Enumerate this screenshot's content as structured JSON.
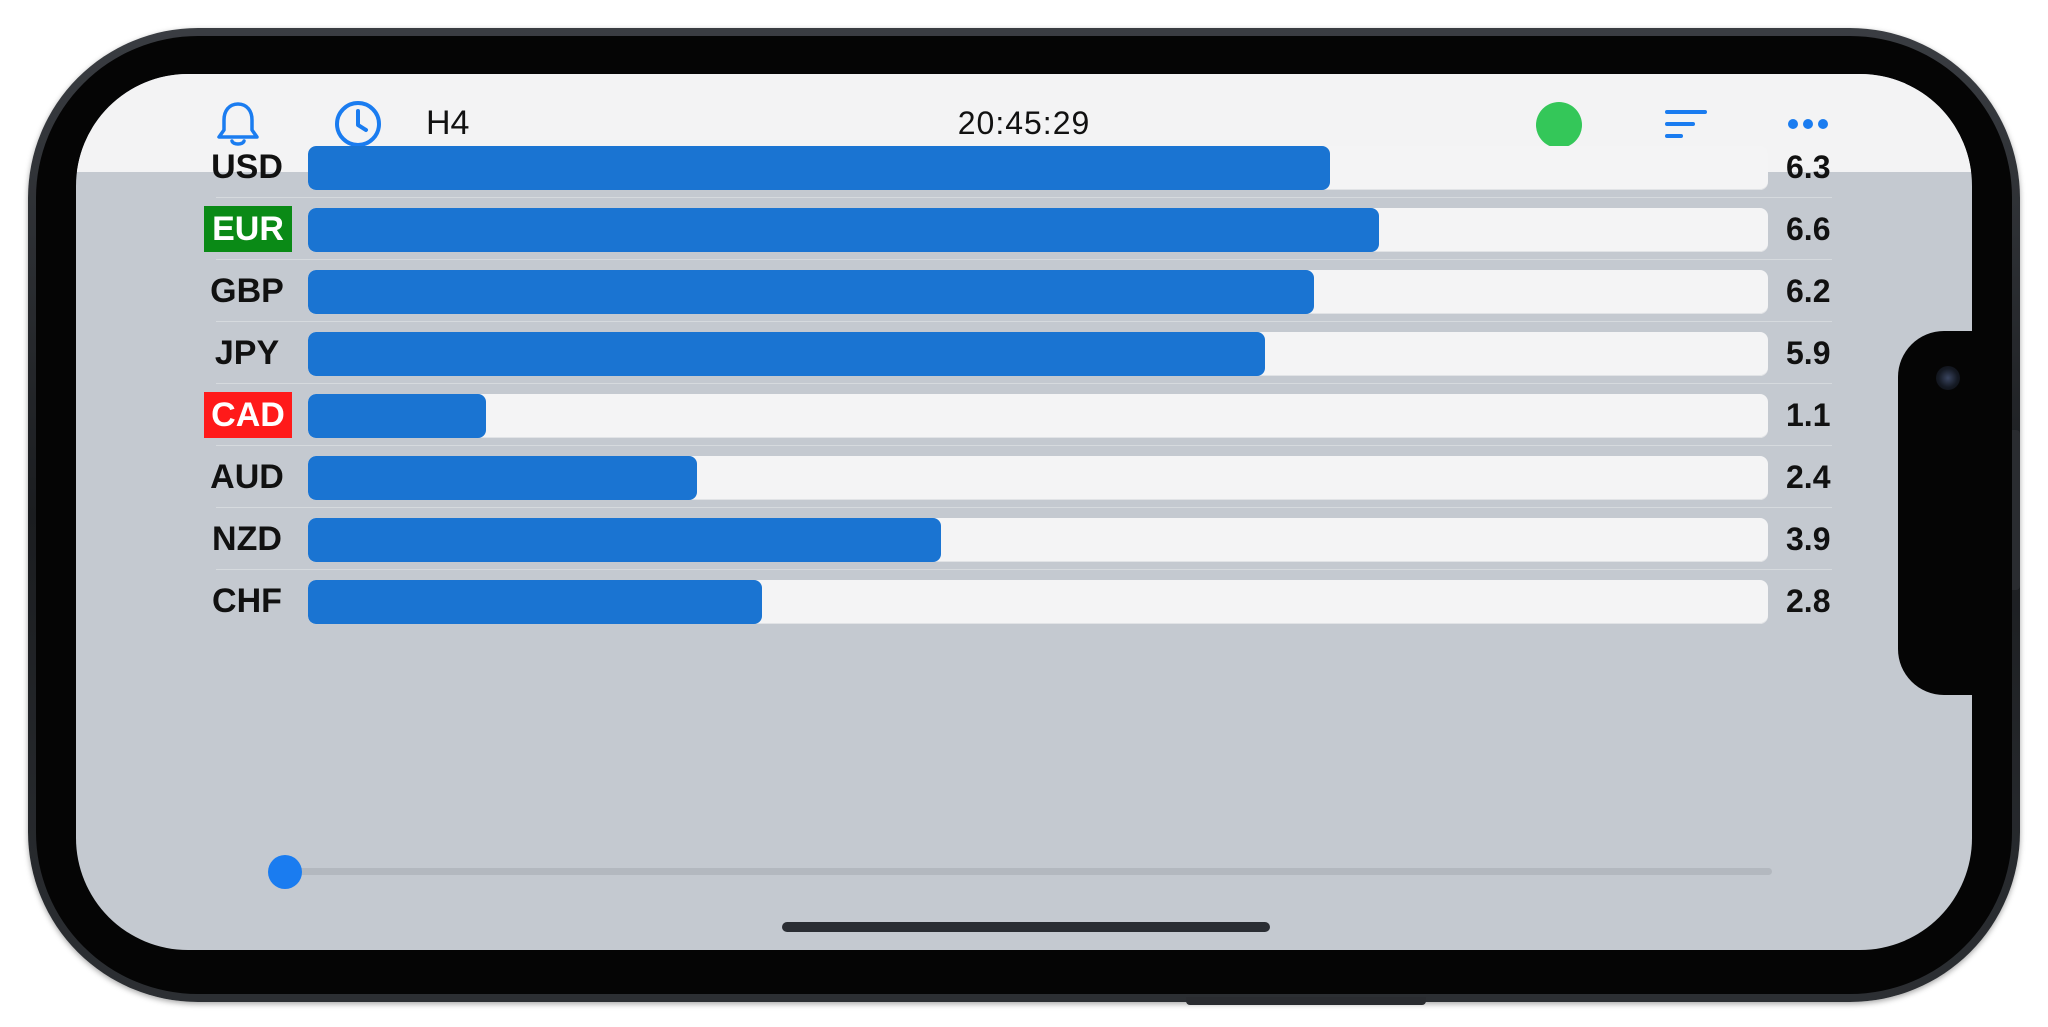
{
  "topbar": {
    "timeframe": "H4",
    "time": "20:45:29",
    "status_color": "#34c759",
    "icons": [
      "bell-icon",
      "clock-icon",
      "sort-icon",
      "more-icon"
    ],
    "accent": "#1a7cf0"
  },
  "strength": {
    "bar_color": "#1a74d2",
    "max": 9,
    "rows": [
      {
        "currency": "USD",
        "value": "6.3",
        "level": 6.3,
        "highlight": ""
      },
      {
        "currency": "EUR",
        "value": "6.6",
        "level": 6.6,
        "highlight": "#0a8a16"
      },
      {
        "currency": "GBP",
        "value": "6.2",
        "level": 6.2,
        "highlight": ""
      },
      {
        "currency": "JPY",
        "value": "5.9",
        "level": 5.9,
        "highlight": ""
      },
      {
        "currency": "CAD",
        "value": "1.1",
        "level": 1.1,
        "highlight": "#ff1a1a"
      },
      {
        "currency": "AUD",
        "value": "2.4",
        "level": 2.4,
        "highlight": ""
      },
      {
        "currency": "NZD",
        "value": "3.9",
        "level": 3.9,
        "highlight": ""
      },
      {
        "currency": "CHF",
        "value": "2.8",
        "level": 2.8,
        "highlight": ""
      }
    ]
  },
  "slider": {
    "position": 0
  }
}
